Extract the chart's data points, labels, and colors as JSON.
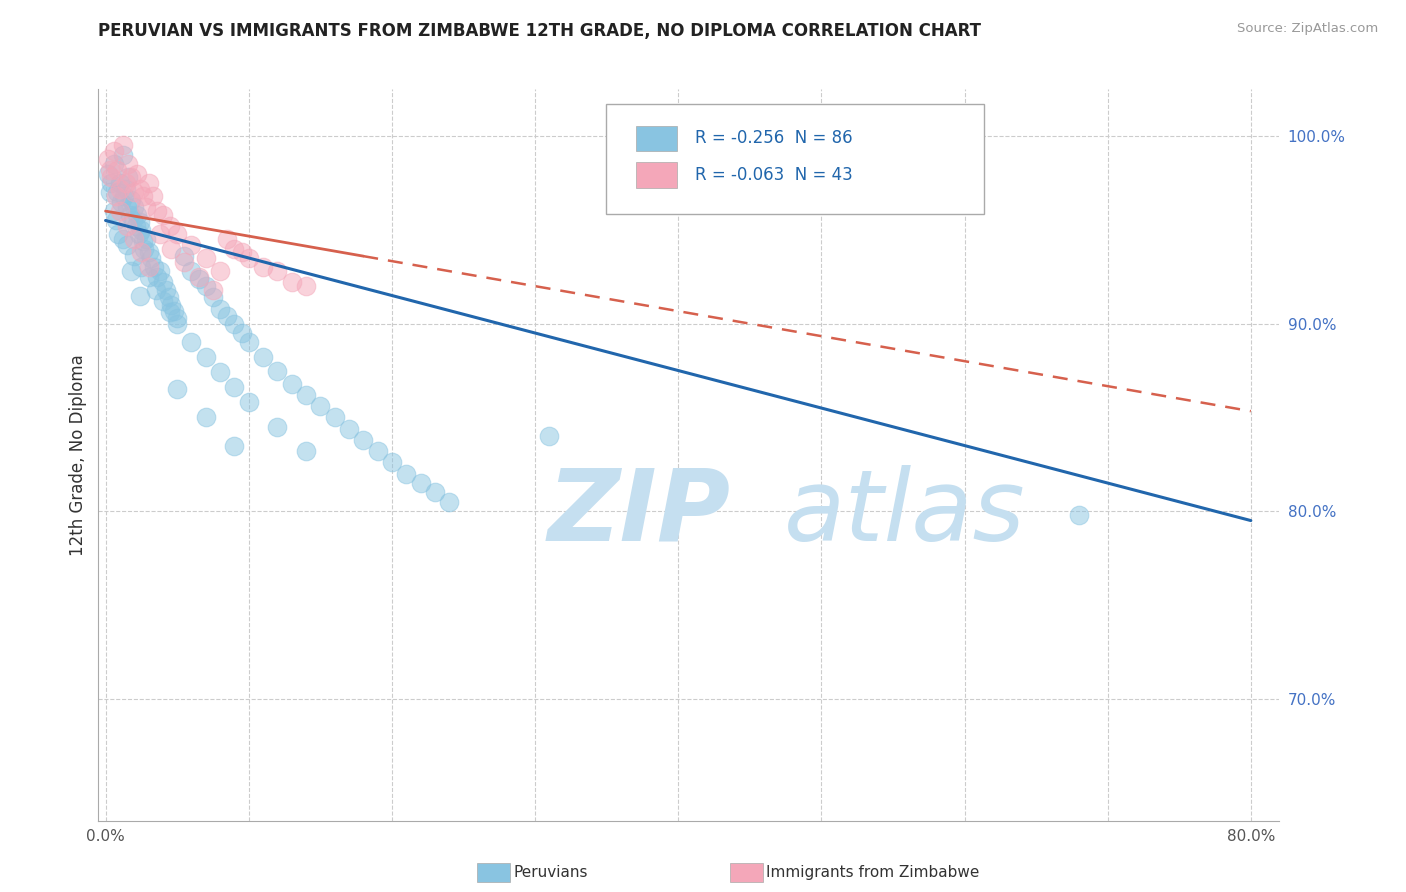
{
  "title": "PERUVIAN VS IMMIGRANTS FROM ZIMBABWE 12TH GRADE, NO DIPLOMA CORRELATION CHART",
  "source": "Source: ZipAtlas.com",
  "ylabel": "12th Grade, No Diploma",
  "legend_label1": "Peruvians",
  "legend_label2": "Immigrants from Zimbabwe",
  "R1": -0.256,
  "N1": 86,
  "R2": -0.063,
  "N2": 43,
  "color1": "#89c4e1",
  "color2": "#f4a7b9",
  "trendline1_color": "#2166ac",
  "trendline2_color": "#d6604d",
  "xlim": [
    -0.005,
    0.82
  ],
  "ylim": [
    0.635,
    1.025
  ],
  "xticks": [
    0.0,
    0.1,
    0.2,
    0.3,
    0.4,
    0.5,
    0.6,
    0.7,
    0.8
  ],
  "yticks": [
    0.7,
    0.8,
    0.9,
    1.0
  ],
  "watermark_zip": "ZIP",
  "watermark_atlas": "atlas",
  "watermark_color_zip": "#c5dff0",
  "watermark_color_atlas": "#c5dff0",
  "background_color": "#ffffff",
  "grid_color": "#cccccc",
  "trendline1_x0": 0.0,
  "trendline1_y0": 0.955,
  "trendline1_x1": 0.8,
  "trendline1_y1": 0.795,
  "trendline2_x0": 0.0,
  "trendline2_y0": 0.96,
  "trendline2_x1": 0.6,
  "trendline2_y1": 0.88,
  "trendline2_dash_x0": 0.2,
  "trendline2_dash_x1": 0.8,
  "peruvian_x": [
    0.002,
    0.004,
    0.006,
    0.008,
    0.01,
    0.011,
    0.012,
    0.013,
    0.014,
    0.015,
    0.016,
    0.017,
    0.018,
    0.019,
    0.02,
    0.021,
    0.022,
    0.023,
    0.024,
    0.025,
    0.026,
    0.027,
    0.028,
    0.03,
    0.032,
    0.034,
    0.036,
    0.038,
    0.04,
    0.042,
    0.044,
    0.046,
    0.048,
    0.05,
    0.055,
    0.06,
    0.065,
    0.07,
    0.075,
    0.08,
    0.085,
    0.09,
    0.095,
    0.1,
    0.11,
    0.12,
    0.13,
    0.14,
    0.15,
    0.16,
    0.17,
    0.18,
    0.19,
    0.2,
    0.21,
    0.22,
    0.23,
    0.24,
    0.003,
    0.007,
    0.009,
    0.015,
    0.02,
    0.025,
    0.03,
    0.035,
    0.04,
    0.045,
    0.05,
    0.06,
    0.07,
    0.08,
    0.09,
    0.1,
    0.12,
    0.14,
    0.006,
    0.012,
    0.018,
    0.024,
    0.31,
    0.68,
    0.05,
    0.07,
    0.09
  ],
  "peruvian_y": [
    0.98,
    0.975,
    0.985,
    0.97,
    0.975,
    0.965,
    0.99,
    0.968,
    0.972,
    0.962,
    0.978,
    0.958,
    0.966,
    0.955,
    0.962,
    0.952,
    0.958,
    0.948,
    0.954,
    0.95,
    0.944,
    0.94,
    0.945,
    0.938,
    0.935,
    0.93,
    0.925,
    0.928,
    0.922,
    0.918,
    0.914,
    0.91,
    0.907,
    0.903,
    0.936,
    0.928,
    0.924,
    0.92,
    0.914,
    0.908,
    0.904,
    0.9,
    0.895,
    0.89,
    0.882,
    0.875,
    0.868,
    0.862,
    0.856,
    0.85,
    0.844,
    0.838,
    0.832,
    0.826,
    0.82,
    0.815,
    0.81,
    0.805,
    0.97,
    0.955,
    0.948,
    0.942,
    0.936,
    0.93,
    0.925,
    0.918,
    0.912,
    0.906,
    0.9,
    0.89,
    0.882,
    0.874,
    0.866,
    0.858,
    0.845,
    0.832,
    0.96,
    0.945,
    0.928,
    0.915,
    0.84,
    0.798,
    0.865,
    0.85,
    0.835
  ],
  "zimbabwe_x": [
    0.002,
    0.004,
    0.006,
    0.008,
    0.01,
    0.012,
    0.014,
    0.016,
    0.018,
    0.02,
    0.022,
    0.024,
    0.026,
    0.028,
    0.03,
    0.033,
    0.036,
    0.04,
    0.045,
    0.05,
    0.06,
    0.07,
    0.08,
    0.09,
    0.1,
    0.12,
    0.14,
    0.003,
    0.007,
    0.01,
    0.015,
    0.02,
    0.025,
    0.03,
    0.038,
    0.046,
    0.055,
    0.065,
    0.075,
    0.085,
    0.095,
    0.11,
    0.13
  ],
  "zimbabwe_y": [
    0.988,
    0.978,
    0.992,
    0.982,
    0.972,
    0.995,
    0.975,
    0.985,
    0.978,
    0.97,
    0.98,
    0.972,
    0.968,
    0.962,
    0.975,
    0.968,
    0.96,
    0.958,
    0.952,
    0.948,
    0.942,
    0.935,
    0.928,
    0.94,
    0.935,
    0.928,
    0.92,
    0.982,
    0.968,
    0.96,
    0.952,
    0.945,
    0.938,
    0.93,
    0.948,
    0.94,
    0.933,
    0.925,
    0.918,
    0.945,
    0.938,
    0.93,
    0.922
  ]
}
